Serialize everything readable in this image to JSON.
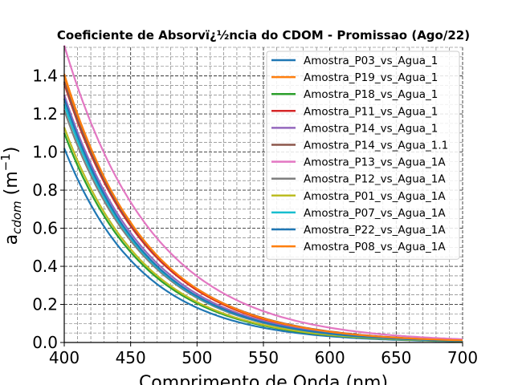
{
  "chart_data": {
    "type": "line",
    "title": "Coeficiente de Absorvï¿½ncia do CDOM - Promissao (Ago/22)",
    "xlabel": "Comprimento de Onda (nm)",
    "ylabel_main": "a",
    "ylabel_sub": "cdom",
    "ylabel_unit": " (m",
    "ylabel_exp": "−1",
    "ylabel_close": ")",
    "xlim": [
      400,
      700
    ],
    "ylim": [
      0.0,
      1.55
    ],
    "xticks": [
      400,
      450,
      500,
      550,
      600,
      650,
      700
    ],
    "yticks": [
      0.0,
      0.2,
      0.4,
      0.6,
      0.8,
      1.0,
      1.2,
      1.4
    ],
    "xtick_labels": [
      "400",
      "450",
      "500",
      "550",
      "600",
      "650",
      "700"
    ],
    "ytick_labels": [
      "0.0",
      "0.2",
      "0.4",
      "0.6",
      "0.8",
      "1.0",
      "1.2",
      "1.4"
    ],
    "grid": true,
    "legend_position": "top-right",
    "x": [
      400,
      410,
      420,
      430,
      440,
      450,
      460,
      470,
      480,
      490,
      500,
      510,
      520,
      530,
      540,
      550,
      560,
      570,
      580,
      590,
      600,
      610,
      620,
      630,
      640,
      650,
      660,
      670,
      680,
      690,
      700
    ],
    "series": [
      {
        "name": "Amostra_P03_vs_Agua_1",
        "color": "#1f77b4",
        "a400": 1.02,
        "k": 0.0172
      },
      {
        "name": "Amostra_P19_vs_Agua_1",
        "color": "#ff7f0e",
        "a400": 1.4,
        "k": 0.0163
      },
      {
        "name": "Amostra_P18_vs_Agua_1",
        "color": "#2ca02c",
        "a400": 1.1,
        "k": 0.0168
      },
      {
        "name": "Amostra_P11_vs_Agua_1",
        "color": "#d62728",
        "a400": 1.36,
        "k": 0.016
      },
      {
        "name": "Amostra_P14_vs_Agua_1",
        "color": "#9467bd",
        "a400": 1.3,
        "k": 0.0163
      },
      {
        "name": "Amostra_P14_vs_Agua_1.1",
        "color": "#8c564b",
        "a400": 1.37,
        "k": 0.0158
      },
      {
        "name": "Amostra_P13_vs_Agua_1A",
        "color": "#e377c2",
        "a400": 1.56,
        "k": 0.015
      },
      {
        "name": "Amostra_P12_vs_Agua_1A",
        "color": "#7f7f7f",
        "a400": 1.22,
        "k": 0.0165
      },
      {
        "name": "Amostra_P01_vs_Agua_1A",
        "color": "#bcbd22",
        "a400": 1.13,
        "k": 0.0167
      },
      {
        "name": "Amostra_P07_vs_Agua_1A",
        "color": "#17becf",
        "a400": 1.25,
        "k": 0.0165
      },
      {
        "name": "Amostra_P22_vs_Agua_1A",
        "color": "#1f77b4",
        "a400": 1.28,
        "k": 0.0166
      },
      {
        "name": "Amostra_P08_vs_Agua_1A",
        "color": "#ff7f0e",
        "a400": 1.41,
        "k": 0.0161
      }
    ]
  }
}
